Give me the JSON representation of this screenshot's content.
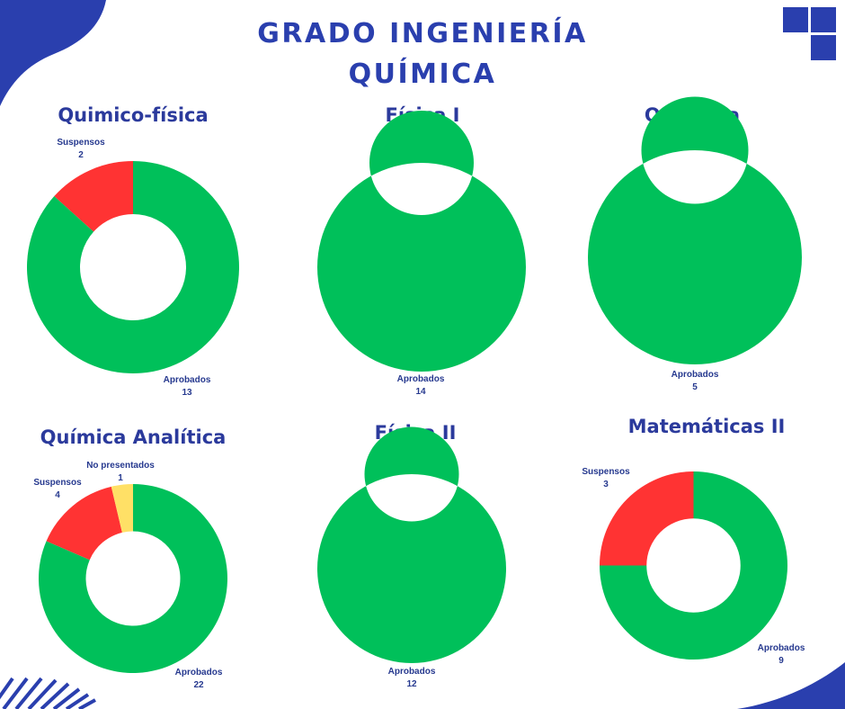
{
  "header": {
    "title_line1": "GRADO INGENIERÍA",
    "title_line2": "QUÍMICA"
  },
  "logo": {
    "icon": "four-squares-logo-icon",
    "color": "#2a3fae"
  },
  "colors": {
    "aprobados": "#00c05a",
    "suspensos": "#ff3333",
    "no_presentados": "#ffe066",
    "title": "#2a3fae",
    "label": "#26398f"
  },
  "chart_data": [
    {
      "type": "pie",
      "subtype": "donut",
      "title": "Quimico-física",
      "slices": [
        {
          "name": "Aprobados",
          "value": 13
        },
        {
          "name": "Suspensos",
          "value": 2
        }
      ]
    },
    {
      "type": "pie",
      "subtype": "donut",
      "title": "Física I",
      "slices": [
        {
          "name": "Aprobados",
          "value": 14
        }
      ]
    },
    {
      "type": "pie",
      "subtype": "donut",
      "title": "Orgánica",
      "slices": [
        {
          "name": "Aprobados",
          "value": 5
        }
      ]
    },
    {
      "type": "pie",
      "subtype": "donut",
      "title": "Química Analítica",
      "slices": [
        {
          "name": "Aprobados",
          "value": 22
        },
        {
          "name": "Suspensos",
          "value": 4
        },
        {
          "name": "No presentados",
          "value": 1
        }
      ]
    },
    {
      "type": "pie",
      "subtype": "donut",
      "title": "Física II",
      "slices": [
        {
          "name": "Aprobados",
          "value": 12
        }
      ]
    },
    {
      "type": "pie",
      "subtype": "donut",
      "title": "Matemáticas II",
      "slices": [
        {
          "name": "Aprobados",
          "value": 9
        },
        {
          "name": "Suspensos",
          "value": 3
        }
      ]
    }
  ]
}
